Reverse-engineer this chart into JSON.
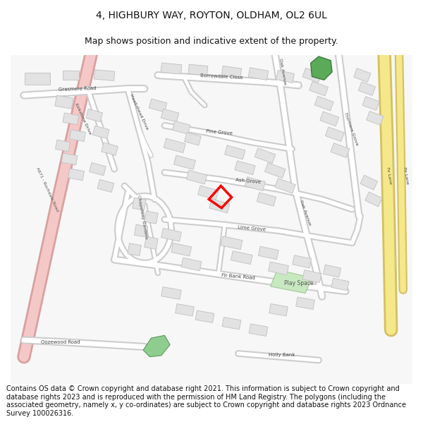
{
  "title": "4, HIGHBURY WAY, ROYTON, OLDHAM, OL2 6UL",
  "subtitle": "Map shows position and indicative extent of the property.",
  "copyright_text": "Contains OS data © Crown copyright and database right 2021. This information is subject to Crown copyright and database rights 2023 and is reproduced with the permission of HM Land Registry. The polygons (including the associated geometry, namely x, y co-ordinates) are subject to Crown copyright and database rights 2023 Ordnance Survey 100026316.",
  "title_fontsize": 10,
  "subtitle_fontsize": 9,
  "copyright_fontsize": 7,
  "bg_color": "#ffffff",
  "map_bg": "#f7f7f7",
  "road_fill": "#ffffff",
  "road_edge": "#cccccc",
  "building_fill": "#e2e2e2",
  "building_edge": "#c0c0c0",
  "pink_road_fill": "#f5c8c8",
  "pink_road_edge": "#d8a0a0",
  "yellow_road_fill": "#f5e88a",
  "yellow_road_edge": "#d4c060"
}
